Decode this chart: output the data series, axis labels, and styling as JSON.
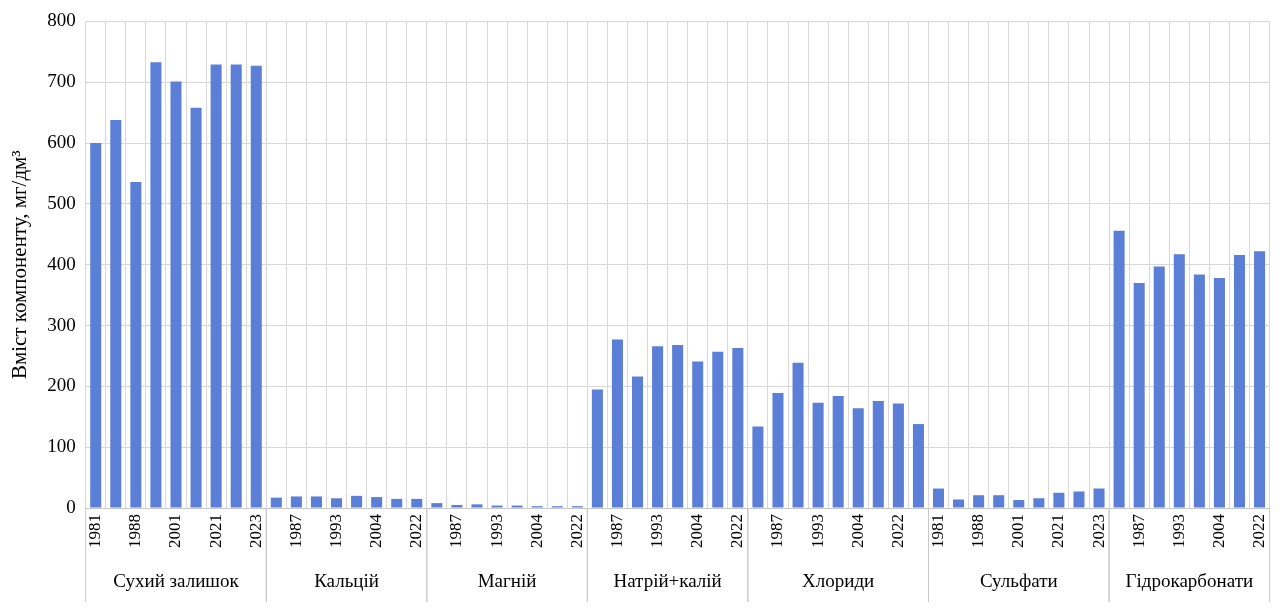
{
  "chart_data": {
    "type": "bar",
    "ylabel": "Вміст компоненту, мг/дм³",
    "categories": [
      "1981",
      null,
      "1988",
      null,
      "2001",
      null,
      "2021",
      null,
      "2023",
      null,
      "1987",
      null,
      "1993",
      null,
      "2004",
      null,
      "2022",
      null,
      "1987",
      null,
      "1993",
      null,
      "2004",
      null,
      "2022",
      null,
      "1987",
      null,
      "1993",
      null,
      "2004",
      null,
      "2022",
      null,
      "1987",
      null,
      "1993",
      null,
      "2004",
      null,
      "2022",
      null,
      "1981",
      null,
      "1988",
      null,
      "2001",
      null,
      "2021",
      null,
      "2023",
      null,
      "1987",
      null,
      "1993",
      null,
      "2004",
      null,
      "2022"
    ],
    "series": [
      {
        "color": "#5b7fd6",
        "values": [
          600,
          638,
          536,
          733,
          701,
          658,
          729,
          729,
          727,
          null,
          null,
          null,
          null,
          null,
          null,
          null,
          null,
          null,
          null,
          null,
          null,
          null,
          null,
          null,
          null,
          null,
          null,
          null,
          null,
          null,
          null,
          null,
          null,
          null,
          null,
          null,
          null,
          null,
          null,
          null,
          null,
          null,
          null,
          null,
          null,
          null,
          null,
          null,
          null,
          null,
          null,
          null,
          null,
          null,
          null,
          null,
          null,
          null,
          null
        ]
      },
      {
        "color": "#5b7fd6",
        "values": [
          null,
          null,
          null,
          null,
          null,
          null,
          null,
          null,
          null,
          17,
          19,
          19,
          16,
          20,
          18,
          15,
          15,
          null,
          null,
          null,
          null,
          null,
          null,
          null,
          null,
          null,
          null,
          null,
          null,
          null,
          null,
          null,
          null,
          null,
          null,
          null,
          null,
          null,
          null,
          null,
          null,
          null,
          null,
          null,
          null,
          null,
          null,
          null,
          null,
          null,
          null,
          null,
          null,
          null,
          null,
          null,
          null,
          null,
          null
        ]
      },
      {
        "color": "#5b7fd6",
        "values": [
          null,
          null,
          null,
          null,
          null,
          null,
          null,
          null,
          null,
          null,
          null,
          null,
          null,
          null,
          null,
          null,
          null,
          8,
          5,
          6,
          4,
          4,
          3,
          3,
          3,
          null,
          null,
          null,
          null,
          null,
          null,
          null,
          null,
          null,
          null,
          null,
          null,
          null,
          null,
          null,
          null,
          null,
          null,
          null,
          null,
          null,
          null,
          null,
          null,
          null,
          null,
          null,
          null,
          null,
          null,
          null,
          null,
          null,
          null
        ]
      },
      {
        "color": "#5b7fd6",
        "values": [
          null,
          null,
          null,
          null,
          null,
          null,
          null,
          null,
          null,
          null,
          null,
          null,
          null,
          null,
          null,
          null,
          null,
          null,
          null,
          null,
          null,
          null,
          null,
          null,
          null,
          195,
          277,
          216,
          266,
          268,
          241,
          257,
          263,
          null,
          null,
          null,
          null,
          null,
          null,
          null,
          null,
          null,
          null,
          null,
          null,
          null,
          null,
          null,
          null,
          null,
          null,
          null,
          null,
          null,
          null,
          null,
          null,
          null,
          null
        ]
      },
      {
        "color": "#5b7fd6",
        "values": [
          null,
          null,
          null,
          null,
          null,
          null,
          null,
          null,
          null,
          null,
          null,
          null,
          null,
          null,
          null,
          null,
          null,
          null,
          null,
          null,
          null,
          null,
          null,
          null,
          null,
          null,
          null,
          null,
          null,
          null,
          null,
          null,
          null,
          134,
          189,
          239,
          173,
          184,
          164,
          176,
          172,
          138,
          null,
          null,
          null,
          null,
          null,
          null,
          null,
          null,
          null,
          null,
          null,
          null,
          null,
          null,
          null,
          null,
          null
        ]
      },
      {
        "color": "#5b7fd6",
        "values": [
          null,
          null,
          null,
          null,
          null,
          null,
          null,
          null,
          null,
          null,
          null,
          null,
          null,
          null,
          null,
          null,
          null,
          null,
          null,
          null,
          null,
          null,
          null,
          null,
          null,
          null,
          null,
          null,
          null,
          null,
          null,
          null,
          null,
          null,
          null,
          null,
          null,
          null,
          null,
          null,
          null,
          null,
          32,
          14,
          21,
          21,
          13,
          16,
          25,
          27,
          32,
          null,
          null,
          null,
          null,
          null,
          null,
          null,
          null
        ]
      },
      {
        "color": "#5b7fd6",
        "values": [
          null,
          null,
          null,
          null,
          null,
          null,
          null,
          null,
          null,
          null,
          null,
          null,
          null,
          null,
          null,
          null,
          null,
          null,
          null,
          null,
          null,
          null,
          null,
          null,
          null,
          null,
          null,
          null,
          null,
          null,
          null,
          null,
          null,
          null,
          null,
          null,
          null,
          null,
          null,
          null,
          null,
          null,
          null,
          null,
          null,
          null,
          null,
          null,
          null,
          null,
          null,
          456,
          370,
          397,
          417,
          384,
          378,
          416,
          422
        ]
      }
    ],
    "annotations": [
      "Сухий залишок",
      "Кальцій",
      "Магній",
      "Натрій+калій",
      "Хлориди",
      "Сульфати",
      "Гідрокарбонати"
    ],
    "ylim": [
      0,
      800
    ],
    "yticks": [
      0,
      100,
      200,
      300,
      400,
      500,
      600,
      700,
      800
    ],
    "grid": true
  }
}
